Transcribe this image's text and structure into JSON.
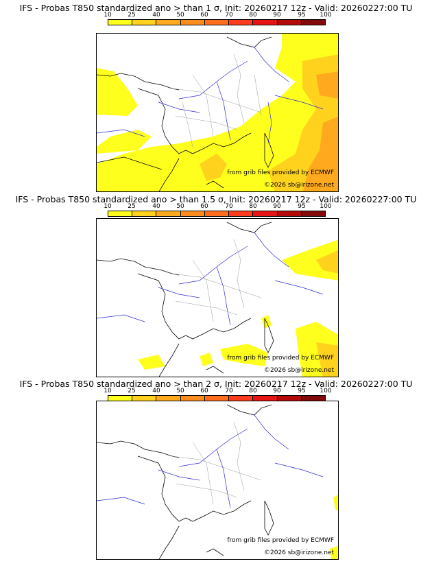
{
  "colorbar": {
    "ticks": [
      "10",
      "25",
      "40",
      "50",
      "60",
      "70",
      "80",
      "90",
      "95",
      "100"
    ],
    "colors": [
      "#ffff1e",
      "#ffd21e",
      "#ffaa1e",
      "#ff8c1e",
      "#ff6e1e",
      "#ff3c1e",
      "#e61414",
      "#b40a0a",
      "#820a0a"
    ]
  },
  "panels": [
    {
      "title": "IFS - Probas T850  standardized ano > than 1 σ, Init: 20260217 12z - Valid: 20260227:00 TU",
      "source_credit": "from grib files provided by ECMWF",
      "copyright": "©2026 sb@irizone.net"
    },
    {
      "title": "IFS - Probas T850  standardized ano > than 1.5 σ, Init: 20260217 12z - Valid: 20260227:00 TU",
      "source_credit": "from grib files provided by ECMWF",
      "copyright": "©2026 sb@irizone.net"
    },
    {
      "title": "IFS - Probas T850  standardized ano > than 2 σ, Init: 20260217 12z - Valid: 20260227:00 TU",
      "source_credit": "from grib files provided by ECMWF",
      "copyright": "©2026 sb@irizone.net"
    }
  ]
}
